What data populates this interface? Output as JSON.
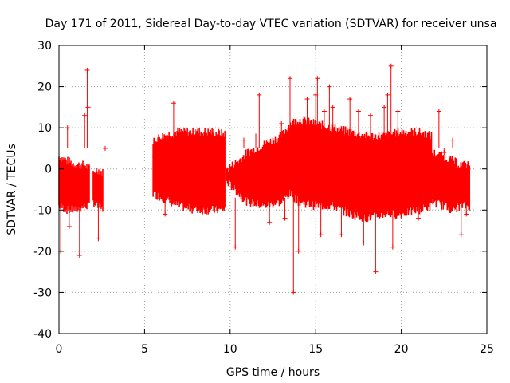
{
  "chart_data": {
    "type": "scatter",
    "title": "Day 171 of 2011, Sidereal Day-to-day VTEC variation (SDTVAR) for receiver unsa",
    "xlabel": "GPS time / hours",
    "ylabel": "SDTVAR / TECUs",
    "xlim": [
      0,
      25
    ],
    "ylim": [
      -40,
      30
    ],
    "grid": true,
    "marker": "+",
    "series_color": "#ff0000",
    "x_ticks": [
      0,
      5,
      10,
      15,
      20,
      25
    ],
    "y_ticks": [
      -40,
      -30,
      -20,
      -10,
      0,
      10,
      20,
      30
    ],
    "x_tick_labels": [
      "0",
      "5",
      "10",
      "15",
      "20",
      "25"
    ],
    "y_tick_labels": [
      "-40",
      "-30",
      "-20",
      "-10",
      "0",
      "10",
      "20",
      "30"
    ],
    "bands": [
      {
        "x": [
          0.0,
          0.5,
          1.0,
          1.5,
          1.8
        ],
        "upper": [
          3,
          2,
          1,
          1,
          0
        ],
        "lower": [
          -9,
          -10,
          -10,
          -9,
          -9
        ]
      },
      {
        "x": [
          2.0,
          2.2,
          2.6
        ],
        "upper": [
          -1,
          0,
          -1
        ],
        "lower": [
          -8,
          -9,
          -10
        ]
      },
      {
        "x": [
          5.5,
          6.0,
          6.5,
          7.0,
          8.0,
          9.0,
          9.7
        ],
        "upper": [
          7,
          8,
          8.5,
          9,
          9,
          9,
          8.5
        ],
        "lower": [
          -6,
          -7,
          -8,
          -9,
          -10,
          -10,
          -10
        ]
      },
      {
        "x": [
          9.8,
          10.5,
          11.0,
          12.0,
          13.0,
          13.5,
          14.0,
          15.0,
          16.0,
          17.0,
          18.0,
          19.0,
          20.0,
          21.0,
          21.8
        ],
        "upper": [
          0,
          2,
          4,
          6,
          8,
          11,
          12,
          11,
          10,
          9,
          8,
          8,
          9,
          9,
          8
        ],
        "lower": [
          -3,
          -6,
          -8,
          -9,
          -8,
          -6,
          -8,
          -9,
          -9,
          -11,
          -12,
          -11,
          -11,
          -10,
          -9
        ]
      },
      {
        "x": [
          21.8,
          22.5,
          23.0,
          23.5,
          24.0
        ],
        "upper": [
          4,
          3,
          2,
          1,
          1
        ],
        "lower": [
          -8,
          -9,
          -10,
          -9,
          -9
        ]
      }
    ],
    "spikes": [
      [
        0.1,
        -20
      ],
      [
        0.5,
        10
      ],
      [
        0.6,
        -14
      ],
      [
        1.0,
        8
      ],
      [
        1.2,
        -21
      ],
      [
        1.5,
        13
      ],
      [
        1.65,
        24
      ],
      [
        1.7,
        15
      ],
      [
        2.3,
        -17
      ],
      [
        2.7,
        5
      ],
      [
        5.6,
        3
      ],
      [
        6.7,
        16
      ],
      [
        6.2,
        -11
      ],
      [
        8.0,
        9
      ],
      [
        10.3,
        -19
      ],
      [
        10.8,
        7
      ],
      [
        11.5,
        8
      ],
      [
        11.7,
        18
      ],
      [
        12.3,
        -13
      ],
      [
        13.0,
        11
      ],
      [
        13.2,
        -12
      ],
      [
        13.5,
        22
      ],
      [
        13.7,
        -30
      ],
      [
        13.8,
        10
      ],
      [
        14.0,
        -20
      ],
      [
        14.5,
        17
      ],
      [
        15.0,
        18
      ],
      [
        15.1,
        22
      ],
      [
        15.3,
        -16
      ],
      [
        15.5,
        14
      ],
      [
        15.8,
        20
      ],
      [
        16.0,
        15
      ],
      [
        16.5,
        -16
      ],
      [
        17.0,
        17
      ],
      [
        17.5,
        14
      ],
      [
        17.8,
        -18
      ],
      [
        18.2,
        13
      ],
      [
        18.5,
        -25
      ],
      [
        19.0,
        15
      ],
      [
        19.2,
        18
      ],
      [
        19.4,
        25
      ],
      [
        19.5,
        -19
      ],
      [
        19.8,
        14
      ],
      [
        21.0,
        -12
      ],
      [
        22.2,
        14
      ],
      [
        22.5,
        4
      ],
      [
        23.0,
        7
      ],
      [
        23.5,
        -16
      ],
      [
        23.8,
        -11
      ]
    ]
  }
}
